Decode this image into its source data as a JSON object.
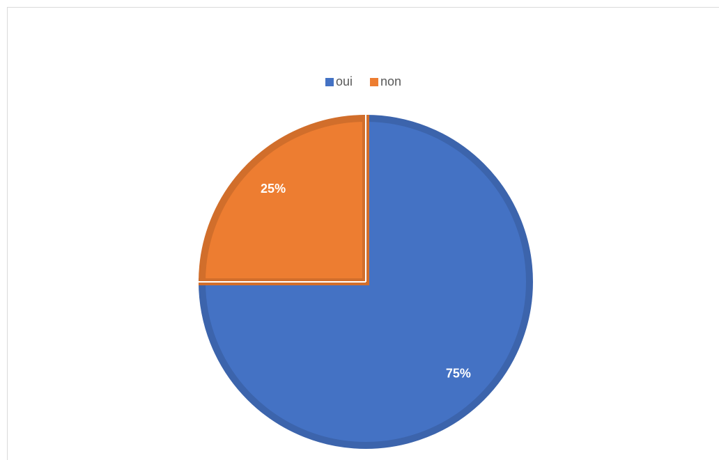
{
  "chart_data": {
    "type": "pie",
    "categories": [
      "oui",
      "non"
    ],
    "values": [
      75,
      25
    ],
    "value_labels": [
      "75%",
      "25%"
    ],
    "colors": [
      "#4472c4",
      "#ed7d31"
    ],
    "legend": "top"
  }
}
